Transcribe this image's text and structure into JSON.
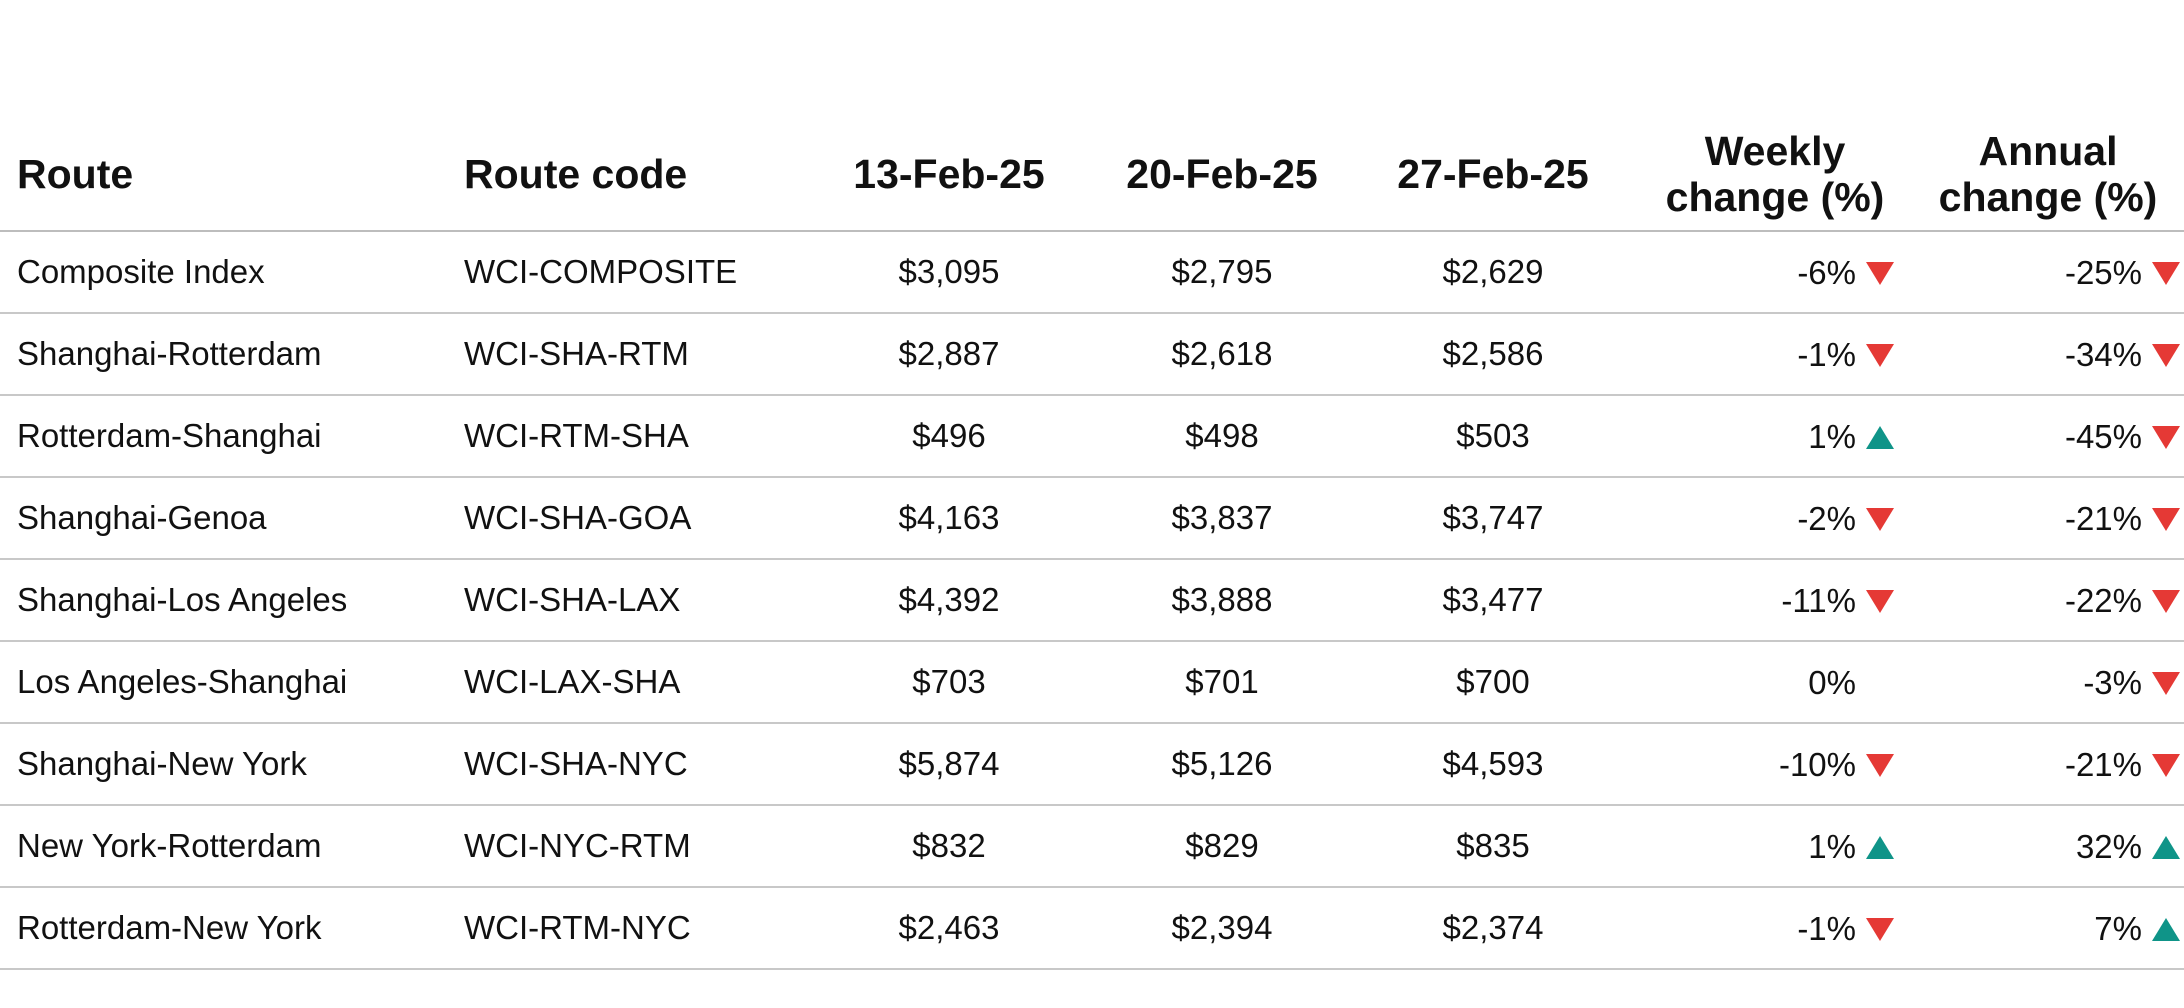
{
  "chart_data": {
    "type": "table",
    "columns": [
      "Route",
      "Route code",
      "13-Feb-25",
      "20-Feb-25",
      "27-Feb-25",
      "Weekly change (%)",
      "Annual change (%)"
    ],
    "header": {
      "route": "Route",
      "code": "Route code",
      "d1": "13-Feb-25",
      "d2": "20-Feb-25",
      "d3": "27-Feb-25",
      "weekly_line1": "Weekly",
      "weekly_line2": "change (%)",
      "annual_line1": "Annual",
      "annual_line2": "change (%)"
    },
    "rows": [
      {
        "route": "Composite Index",
        "code": "WCI-COMPOSITE",
        "d1": "$3,095",
        "d2": "$2,795",
        "d3": "$2,629",
        "weekly": "-6%",
        "weekly_dir": "down",
        "annual": "-25%",
        "annual_dir": "down"
      },
      {
        "route": "Shanghai-Rotterdam",
        "code": "WCI-SHA-RTM",
        "d1": "$2,887",
        "d2": "$2,618",
        "d3": "$2,586",
        "weekly": "-1%",
        "weekly_dir": "down",
        "annual": "-34%",
        "annual_dir": "down"
      },
      {
        "route": "Rotterdam-Shanghai",
        "code": "WCI-RTM-SHA",
        "d1": "$496",
        "d2": "$498",
        "d3": "$503",
        "weekly": "1%",
        "weekly_dir": "up",
        "annual": "-45%",
        "annual_dir": "down"
      },
      {
        "route": "Shanghai-Genoa",
        "code": "WCI-SHA-GOA",
        "d1": "$4,163",
        "d2": "$3,837",
        "d3": "$3,747",
        "weekly": "-2%",
        "weekly_dir": "down",
        "annual": "-21%",
        "annual_dir": "down"
      },
      {
        "route": "Shanghai-Los Angeles",
        "code": "WCI-SHA-LAX",
        "d1": "$4,392",
        "d2": "$3,888",
        "d3": "$3,477",
        "weekly": "-11%",
        "weekly_dir": "down",
        "annual": "-22%",
        "annual_dir": "down"
      },
      {
        "route": "Los Angeles-Shanghai",
        "code": "WCI-LAX-SHA",
        "d1": "$703",
        "d2": "$701",
        "d3": "$700",
        "weekly": "0%",
        "weekly_dir": "none",
        "annual": "-3%",
        "annual_dir": "down"
      },
      {
        "route": "Shanghai-New York",
        "code": "WCI-SHA-NYC",
        "d1": "$5,874",
        "d2": "$5,126",
        "d3": "$4,593",
        "weekly": "-10%",
        "weekly_dir": "down",
        "annual": "-21%",
        "annual_dir": "down"
      },
      {
        "route": "New York-Rotterdam",
        "code": "WCI-NYC-RTM",
        "d1": "$832",
        "d2": "$829",
        "d3": "$835",
        "weekly": "1%",
        "weekly_dir": "up",
        "annual": "32%",
        "annual_dir": "up"
      },
      {
        "route": "Rotterdam-New York",
        "code": "WCI-RTM-NYC",
        "d1": "$2,463",
        "d2": "$2,394",
        "d3": "$2,374",
        "weekly": "-1%",
        "weekly_dir": "down",
        "annual": "7%",
        "annual_dir": "up"
      }
    ],
    "colors": {
      "down": "#e53935",
      "up": "#0f9488",
      "rule": "#c8c8c8"
    },
    "icons": {
      "down": "triangle-down-icon",
      "up": "triangle-up-icon"
    }
  }
}
